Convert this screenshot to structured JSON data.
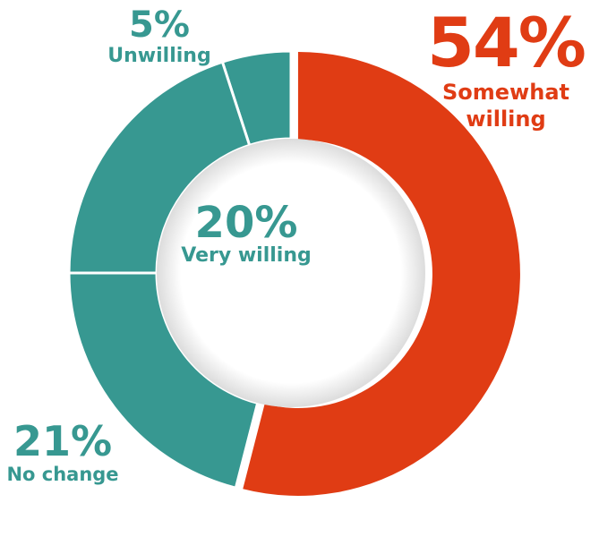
{
  "chart_data": {
    "type": "pie",
    "categories": [
      "Somewhat willing",
      "Unwilling",
      "Very willing",
      "No change"
    ],
    "values": [
      54,
      5,
      20,
      21
    ],
    "labels": [
      {
        "pct": "54%",
        "name": "Somewhat willing",
        "color": "#e03c14"
      },
      {
        "pct": "5%",
        "name": "Unwilling",
        "color": "#379891"
      },
      {
        "pct": "20%",
        "name": "Very willing",
        "color": "#379891"
      },
      {
        "pct": "21%",
        "name": "No change",
        "color": "#379891"
      }
    ],
    "colors": [
      "#e03c14",
      "#379891",
      "#379891",
      "#379891"
    ],
    "donut": true
  }
}
